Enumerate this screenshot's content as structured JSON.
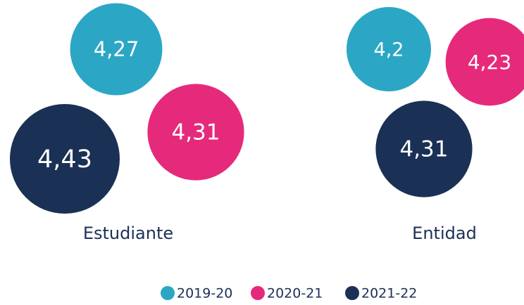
{
  "chart_data": {
    "type": "bubble",
    "categories": [
      "Estudiante",
      "Entidad"
    ],
    "series": [
      {
        "name": "2019-20",
        "color": "#2ba7c5",
        "values": [
          4.27,
          4.2
        ],
        "value_labels": [
          "4,27",
          "4,2"
        ]
      },
      {
        "name": "2020-21",
        "color": "#e62a7b",
        "values": [
          4.31,
          4.23
        ],
        "value_labels": [
          "4,31",
          "4,23"
        ]
      },
      {
        "name": "2021-22",
        "color": "#1b3055",
        "values": [
          4.43,
          4.31
        ],
        "value_labels": [
          "4,43",
          "4,31"
        ]
      }
    ],
    "legend": "bottom"
  }
}
